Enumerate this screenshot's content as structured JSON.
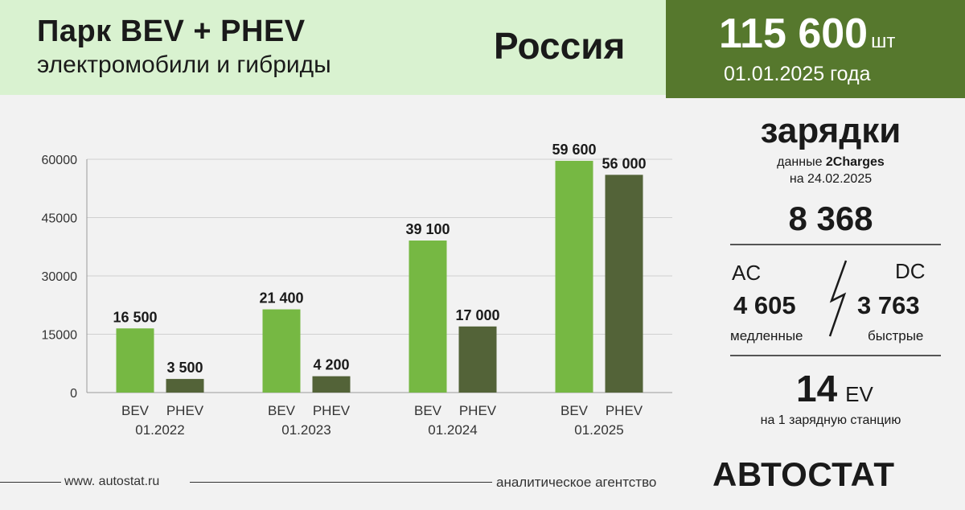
{
  "header": {
    "title": "Парк BEV + PHEV",
    "subtitle": "электромобили и гибриды",
    "country": "Россия",
    "total_value": "115 600",
    "total_unit": "шт",
    "date": "01.01.2025 года"
  },
  "colors": {
    "header_left_bg": "#d9f2d0",
    "header_right_bg": "#56782d",
    "bev": "#76b843",
    "phev": "#536338",
    "page_bg": "#f2f2f2"
  },
  "chart_data": {
    "type": "bar",
    "title": "",
    "xlabel": "",
    "ylabel": "",
    "ylim": [
      0,
      60000
    ],
    "yticks": [
      "0",
      "15000",
      "30000",
      "45000",
      "60000"
    ],
    "ytick_values": [
      0,
      15000,
      30000,
      45000,
      60000
    ],
    "groups": [
      "01.2022",
      "01.2023",
      "01.2024",
      "01.2025"
    ],
    "series": [
      {
        "name": "BEV",
        "values": [
          16500,
          21400,
          39100,
          59600
        ],
        "labels": [
          "16 500",
          "21 400",
          "39 100",
          "59 600"
        ]
      },
      {
        "name": "PHEV",
        "values": [
          3500,
          4200,
          17000,
          56000
        ],
        "labels": [
          "3 500",
          "4 200",
          "17 000",
          "56 000"
        ]
      }
    ]
  },
  "charging": {
    "title": "зарядки",
    "source_prefix": "данные ",
    "source_name": "2Charges",
    "source_date": "на 24.02.2025",
    "total": "8 368",
    "ac_label": "AC",
    "dc_label": "DC",
    "ac_value": "4 605",
    "dc_value": "3 763",
    "ac_desc": "медленные",
    "dc_desc": "быстрые",
    "ev_per_station": "14",
    "ev_unit": "EV",
    "ev_desc": "на 1 зарядную станцию"
  },
  "footer": {
    "site": "www. autostat.ru",
    "agency": "аналитическое агентство",
    "brand": "АВТОСТАТ"
  }
}
